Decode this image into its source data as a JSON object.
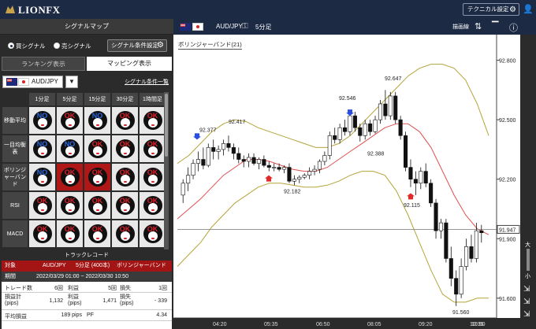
{
  "header": {
    "logo": "LIONFX",
    "technical_settings": "テクニカル設定"
  },
  "left": {
    "title": "シグナルマップ",
    "radio_buy": "買シグナル",
    "radio_sell": "売シグナル",
    "cond_button": "シグナル条件設定",
    "tab_ranking": "ランキング表示",
    "tab_mapping": "マッピング表示",
    "pair": "AUD/JPY",
    "cond_list": "シグナル条件一覧",
    "columns": [
      "1分足",
      "5分足",
      "15分足",
      "30分足",
      "1時間足"
    ],
    "rows": [
      {
        "label": "移動平均",
        "cells": [
          "NO",
          "OK",
          "NO",
          "OK",
          "OK"
        ]
      },
      {
        "label": "一目均衡表",
        "cells": [
          "NO",
          "NO",
          "OK",
          "OK",
          "OK"
        ]
      },
      {
        "label": "ボリンジャーバンド",
        "cells": [
          "NO",
          "OK",
          "OK",
          "OK",
          "OK"
        ]
      },
      {
        "label": "RSI",
        "cells": [
          "OK",
          "OK",
          "OK",
          "OK",
          "OK"
        ]
      },
      {
        "label": "MACD",
        "cells": [
          "OK",
          "OK",
          "OK",
          "OK",
          "OK"
        ]
      }
    ],
    "track_title": "トラックレコード",
    "track": {
      "head_label": "対象",
      "head_pair": "AUD/JPY",
      "head_tf": "5分足 (400本)",
      "head_indicator": "ボリンジャーバンド",
      "period_label": "期間",
      "period_value": "2022/03/29 01:00 ~ 2022/03/30 10:50",
      "trades_label": "トレード数",
      "trades_value": "6回",
      "profit_label": "利益",
      "profit_value": "5回",
      "loss_label": "損失",
      "loss_value": "1回",
      "pl_total_label": "損益計\n(pips)",
      "pl_total_value": "1,132",
      "profit_pips_label": "利益\n(pips)",
      "profit_pips_value": "1,471",
      "loss_pips_label": "損失\n(pips)",
      "loss_pips_value": "- 339",
      "avg_label": "平均損益",
      "avg_value": "189 pips",
      "pf_label": "PF",
      "pf_value": "4.34"
    }
  },
  "chart_top": {
    "pair": "AUD/JPY",
    "timeframe": "5分足",
    "toolbar_label": "描画線"
  },
  "chart_title": "ボリンジャーバンド(21)",
  "rail": {
    "large": "大",
    "small": "小"
  },
  "chart_data": {
    "type": "candlestick",
    "price_ticks": [
      "92.800",
      "92.500",
      "92.200",
      "91.900",
      "91.600"
    ],
    "time_ticks": [
      "04:20",
      "05:35",
      "06:50",
      "08:05",
      "09:20",
      "10:35",
      "10:50"
    ],
    "current_price": "91.947",
    "annotations": [
      "92.377",
      "92.417",
      "92.546",
      "92.647",
      "92.388",
      "92.182",
      "92.115",
      "91.560"
    ],
    "ylim": [
      91.5,
      92.85
    ],
    "candles": [
      [
        92.12,
        92.2,
        92.08,
        92.18
      ],
      [
        92.18,
        92.26,
        92.14,
        92.22
      ],
      [
        92.22,
        92.3,
        92.2,
        92.28
      ],
      [
        92.28,
        92.34,
        92.24,
        92.3
      ],
      [
        92.3,
        92.36,
        92.25,
        92.27
      ],
      [
        92.27,
        92.38,
        92.26,
        92.36
      ],
      [
        92.36,
        92.4,
        92.3,
        92.34
      ],
      [
        92.34,
        92.37,
        92.3,
        92.35
      ],
      [
        92.35,
        92.4,
        92.32,
        92.38
      ],
      [
        92.38,
        92.42,
        92.34,
        92.36
      ],
      [
        92.36,
        92.38,
        92.3,
        92.33
      ],
      [
        92.33,
        92.36,
        92.28,
        92.3
      ],
      [
        92.3,
        92.32,
        92.26,
        92.29
      ],
      [
        92.29,
        92.33,
        92.26,
        92.31
      ],
      [
        92.31,
        92.33,
        92.27,
        92.28
      ],
      [
        92.28,
        92.31,
        92.25,
        92.3
      ],
      [
        92.3,
        92.32,
        92.26,
        92.27
      ],
      [
        92.27,
        92.29,
        92.24,
        92.26
      ],
      [
        92.26,
        92.28,
        92.24,
        92.26
      ],
      [
        92.26,
        92.28,
        92.24,
        92.25
      ],
      [
        92.25,
        92.27,
        92.23,
        92.26
      ],
      [
        92.26,
        92.28,
        92.18,
        92.19
      ],
      [
        92.19,
        92.22,
        92.17,
        92.2
      ],
      [
        92.2,
        92.22,
        92.18,
        92.21
      ],
      [
        92.21,
        92.23,
        92.2,
        92.22
      ],
      [
        92.22,
        92.26,
        92.2,
        92.24
      ],
      [
        92.24,
        92.27,
        92.22,
        92.25
      ],
      [
        92.25,
        92.3,
        92.23,
        92.29
      ],
      [
        92.29,
        92.34,
        92.27,
        92.32
      ],
      [
        92.32,
        92.44,
        92.3,
        92.42
      ],
      [
        92.42,
        92.46,
        92.38,
        92.4
      ],
      [
        92.4,
        92.48,
        92.38,
        92.46
      ],
      [
        92.46,
        92.5,
        92.42,
        92.44
      ],
      [
        92.44,
        92.55,
        92.42,
        92.52
      ],
      [
        92.52,
        92.54,
        92.44,
        92.46
      ],
      [
        92.46,
        92.48,
        92.39,
        92.42
      ],
      [
        92.42,
        92.5,
        92.4,
        92.48
      ],
      [
        92.48,
        92.5,
        92.42,
        92.44
      ],
      [
        92.44,
        92.52,
        92.43,
        92.5
      ],
      [
        92.5,
        92.6,
        92.48,
        92.58
      ],
      [
        92.58,
        92.65,
        92.5,
        92.52
      ],
      [
        92.52,
        92.64,
        92.5,
        92.62
      ],
      [
        92.62,
        92.64,
        92.48,
        92.5
      ],
      [
        92.5,
        92.52,
        92.4,
        92.42
      ],
      [
        92.42,
        92.44,
        92.24,
        92.26
      ],
      [
        92.26,
        92.3,
        92.16,
        92.2
      ],
      [
        92.2,
        92.24,
        92.12,
        92.18
      ],
      [
        92.18,
        92.26,
        92.15,
        92.24
      ],
      [
        92.24,
        92.28,
        92.16,
        92.18
      ],
      [
        92.18,
        92.2,
        92.06,
        92.08
      ],
      [
        92.08,
        92.1,
        91.9,
        91.94
      ],
      [
        91.94,
        92.0,
        91.9,
        91.98
      ],
      [
        91.98,
        92.0,
        91.78,
        91.8
      ],
      [
        91.8,
        91.86,
        91.66,
        91.7
      ],
      [
        91.7,
        91.74,
        91.56,
        91.62
      ],
      [
        91.62,
        91.8,
        91.6,
        91.76
      ],
      [
        91.76,
        91.9,
        91.74,
        91.86
      ],
      [
        91.86,
        91.92,
        91.78,
        91.8
      ],
      [
        91.8,
        91.98,
        91.78,
        91.94
      ],
      [
        91.94,
        91.97,
        91.88,
        91.93
      ]
    ],
    "bollinger_upper": [
      92.28,
      92.32,
      92.38,
      92.44,
      92.48,
      92.5,
      92.49,
      92.46,
      92.44,
      92.42,
      92.4,
      92.38,
      92.36,
      92.36,
      92.38,
      92.42,
      92.48,
      92.54,
      92.6,
      92.66,
      92.72,
      92.76,
      92.78,
      92.78,
      92.76,
      92.7,
      92.58,
      92.42
    ],
    "bollinger_mid": [
      92.0,
      92.05,
      92.1,
      92.16,
      92.22,
      92.26,
      92.3,
      92.3,
      92.29,
      92.27,
      92.25,
      92.24,
      92.24,
      92.26,
      92.3,
      92.34,
      92.38,
      92.42,
      92.46,
      92.48,
      92.48,
      92.44,
      92.36,
      92.24,
      92.12,
      92.02,
      91.95,
      91.92
    ],
    "bollinger_lower": [
      91.76,
      91.82,
      91.88,
      91.96,
      92.02,
      92.08,
      92.12,
      92.16,
      92.18,
      92.18,
      92.17,
      92.16,
      92.16,
      92.17,
      92.19,
      92.22,
      92.24,
      92.24,
      92.22,
      92.14,
      92.02,
      91.88,
      91.74,
      91.62,
      91.58,
      91.58,
      91.6,
      91.6
    ]
  }
}
